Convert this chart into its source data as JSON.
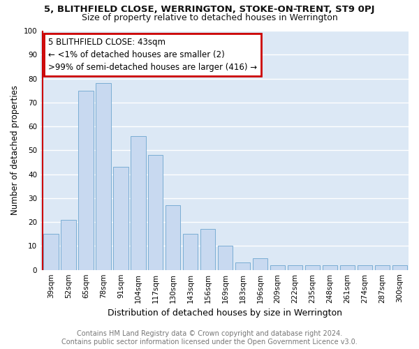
{
  "title": "5, BLITHFIELD CLOSE, WERRINGTON, STOKE-ON-TRENT, ST9 0PJ",
  "subtitle": "Size of property relative to detached houses in Werrington",
  "xlabel": "Distribution of detached houses by size in Werrington",
  "ylabel": "Number of detached properties",
  "categories": [
    "39sqm",
    "52sqm",
    "65sqm",
    "78sqm",
    "91sqm",
    "104sqm",
    "117sqm",
    "130sqm",
    "143sqm",
    "156sqm",
    "169sqm",
    "183sqm",
    "196sqm",
    "209sqm",
    "222sqm",
    "235sqm",
    "248sqm",
    "261sqm",
    "274sqm",
    "287sqm",
    "300sqm"
  ],
  "values": [
    15,
    21,
    75,
    78,
    43,
    56,
    48,
    27,
    15,
    17,
    10,
    3,
    5,
    2,
    2,
    2,
    2,
    2,
    2,
    2,
    2
  ],
  "bar_color": "#c8d9f0",
  "bar_edge_color": "#7aadd4",
  "annotation_box_text": "5 BLITHFIELD CLOSE: 43sqm\n← <1% of detached houses are smaller (2)\n>99% of semi-detached houses are larger (416) →",
  "annotation_box_color": "#ffffff",
  "annotation_box_edge_color": "#cc0000",
  "highlight_line_color": "#cc0000",
  "ylim": [
    0,
    100
  ],
  "yticks": [
    0,
    10,
    20,
    30,
    40,
    50,
    60,
    70,
    80,
    90,
    100
  ],
  "axes_background_color": "#dce8f5",
  "grid_color": "#ffffff",
  "footer_text": "Contains HM Land Registry data © Crown copyright and database right 2024.\nContains public sector information licensed under the Open Government Licence v3.0.",
  "title_fontsize": 9.5,
  "subtitle_fontsize": 9,
  "xlabel_fontsize": 9,
  "ylabel_fontsize": 8.5,
  "tick_fontsize": 7.5,
  "annotation_fontsize": 8.5,
  "footer_fontsize": 7
}
